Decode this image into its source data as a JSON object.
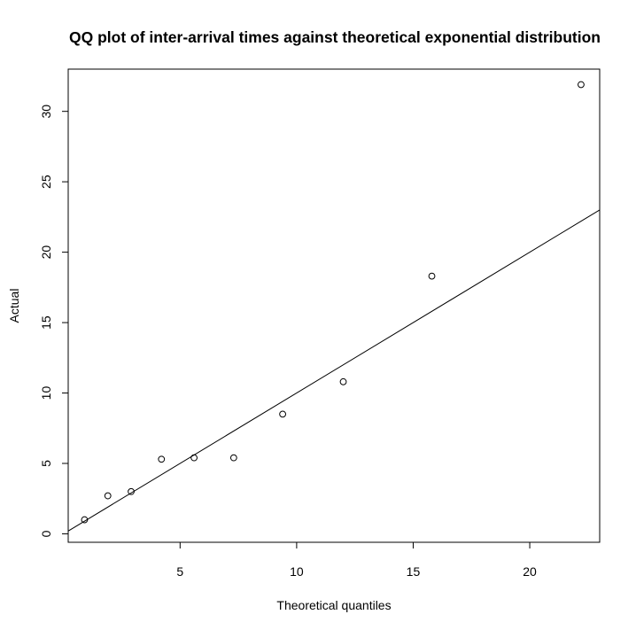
{
  "chart_data": {
    "type": "scatter",
    "title": "QQ plot of inter-arrival times against theoretical exponential distribution",
    "xlabel": "Theoretical quantiles",
    "ylabel": "Actual",
    "xlim": [
      0.2,
      23.0
    ],
    "ylim": [
      -0.6,
      33.0
    ],
    "x_ticks": [
      5,
      10,
      15,
      20
    ],
    "y_ticks": [
      0,
      5,
      10,
      15,
      20,
      25,
      30
    ],
    "grid": false,
    "legend": "none",
    "series": [
      {
        "marker": "open-circle",
        "color": "#000000",
        "points": [
          {
            "x": 0.9,
            "y": 1.0
          },
          {
            "x": 1.9,
            "y": 2.7
          },
          {
            "x": 2.9,
            "y": 3.0
          },
          {
            "x": 4.2,
            "y": 5.3
          },
          {
            "x": 5.6,
            "y": 5.4
          },
          {
            "x": 7.3,
            "y": 5.4
          },
          {
            "x": 9.4,
            "y": 8.5
          },
          {
            "x": 12.0,
            "y": 10.8
          },
          {
            "x": 15.8,
            "y": 18.3
          },
          {
            "x": 22.2,
            "y": 31.9
          }
        ]
      }
    ],
    "reference_line": {
      "intercept": 0,
      "slope": 1,
      "color": "#000000"
    }
  }
}
